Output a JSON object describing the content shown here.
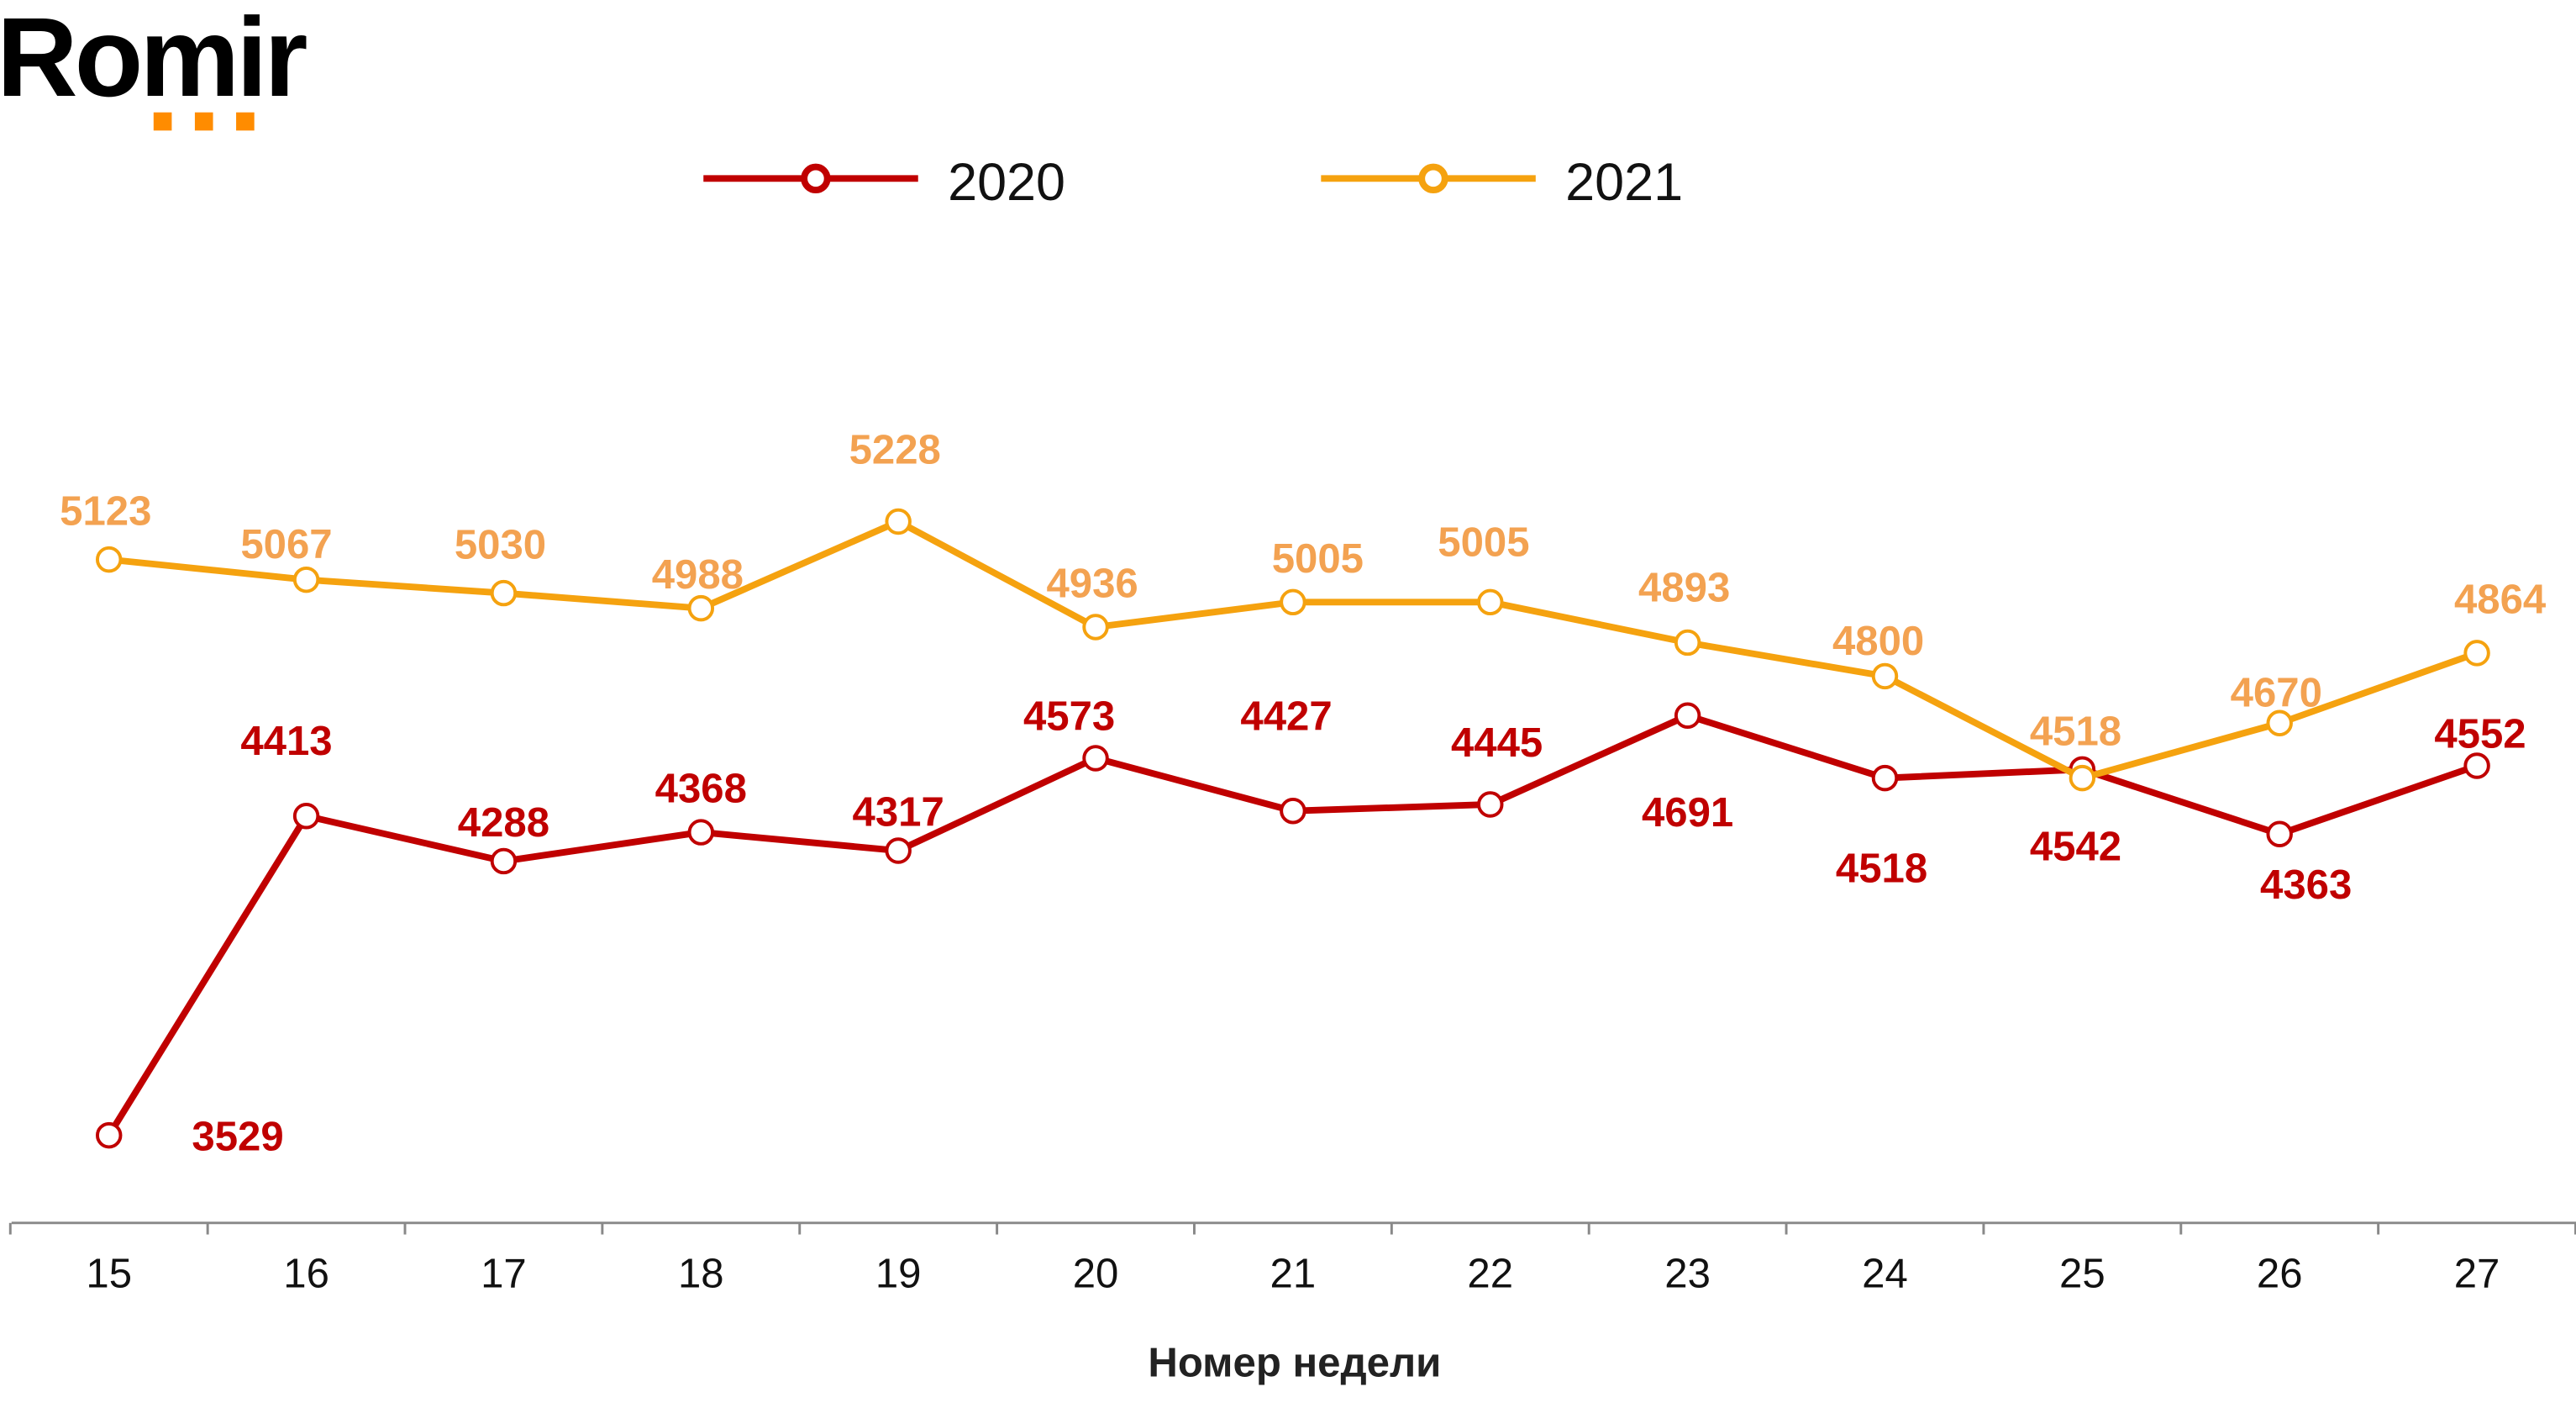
{
  "logo": {
    "text": "Romir",
    "accent_color": "#FF8C00"
  },
  "chart_data": {
    "type": "line",
    "title": "",
    "xlabel": "Номер недели",
    "ylabel": "",
    "categories": [
      "15",
      "16",
      "17",
      "18",
      "19",
      "20",
      "21",
      "22",
      "23",
      "24",
      "25",
      "26",
      "27"
    ],
    "series": [
      {
        "name": "2020",
        "color": "#C00000",
        "label_color": "#C00000",
        "values": [
          3529,
          4413,
          4288,
          4368,
          4317,
          4573,
          4427,
          4445,
          4691,
          4518,
          4542,
          4363,
          4552
        ]
      },
      {
        "name": "2021",
        "color": "#F5A20F",
        "label_color": "#F3A251",
        "values": [
          5123,
          5067,
          5030,
          4988,
          5228,
          4936,
          5005,
          5005,
          4893,
          4800,
          4518,
          4670,
          4864
        ]
      }
    ],
    "legend_position": "top",
    "grid": false,
    "y_axis_visible": false,
    "data_labels": true
  }
}
